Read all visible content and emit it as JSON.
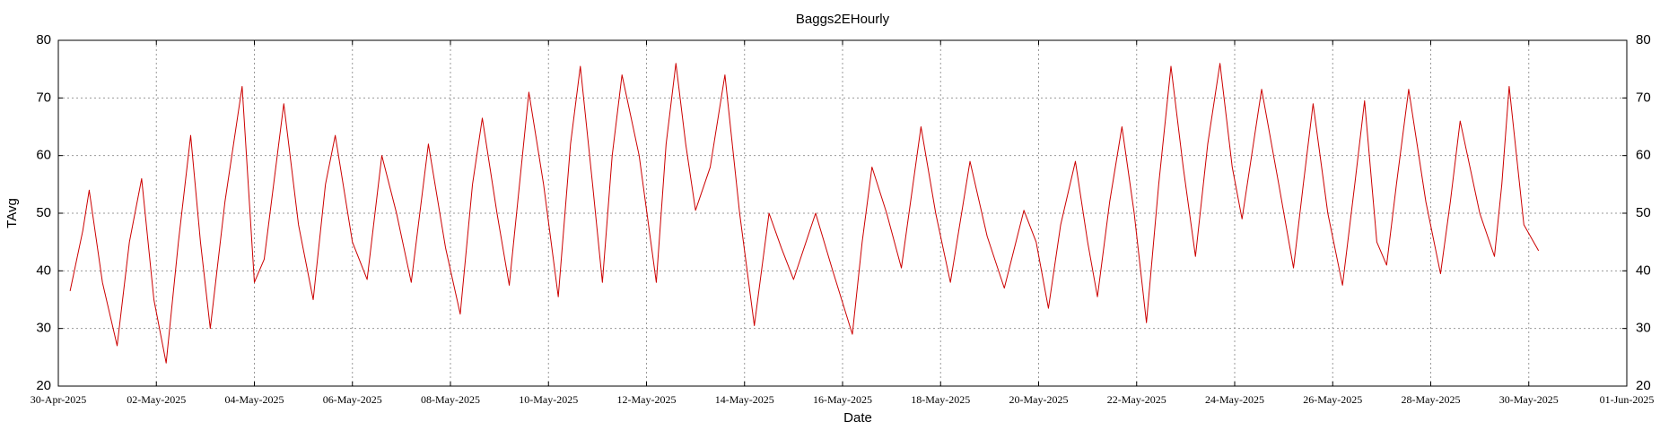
{
  "chart_data": {
    "type": "line",
    "title": "Baggs2EHourly",
    "x_label": "Date",
    "y_label": "TAvg",
    "series": [
      {
        "name": "TAvg",
        "color": "#cc0000",
        "x": [
          0.24,
          0.5,
          0.63,
          0.9,
          1.2,
          1.45,
          1.7,
          1.95,
          2.2,
          2.45,
          2.7,
          2.9,
          3.1,
          3.4,
          3.75,
          4.0,
          4.1,
          4.2,
          4.6,
          4.9,
          5.2,
          5.45,
          5.65,
          6.0,
          6.3,
          6.6,
          6.9,
          7.2,
          7.55,
          7.9,
          8.2,
          8.45,
          8.65,
          8.95,
          9.2,
          9.6,
          9.9,
          10.2,
          10.45,
          10.65,
          10.9,
          11.1,
          11.3,
          11.5,
          11.85,
          12.2,
          12.4,
          12.6,
          12.8,
          13.0,
          13.3,
          13.6,
          13.9,
          14.2,
          14.5,
          14.75,
          15.0,
          15.45,
          15.8,
          16.2,
          16.4,
          16.6,
          16.9,
          17.2,
          17.6,
          17.9,
          18.2,
          18.6,
          18.95,
          19.3,
          19.7,
          19.95,
          20.2,
          20.45,
          20.75,
          21.0,
          21.2,
          21.45,
          21.7,
          21.95,
          22.2,
          22.45,
          22.7,
          22.95,
          23.2,
          23.45,
          23.7,
          23.95,
          24.15,
          24.55,
          24.9,
          25.2,
          25.4,
          25.6,
          25.9,
          26.2,
          26.45,
          26.65,
          26.9,
          27.1,
          27.3,
          27.55,
          27.9,
          28.2,
          28.4,
          28.6,
          29.0,
          29.3,
          29.45,
          29.6,
          29.9,
          30.2
        ],
        "values": [
          36.5,
          47,
          54,
          38,
          27,
          45,
          56,
          35,
          24,
          45,
          63.5,
          45,
          30,
          52,
          72,
          38,
          40,
          42,
          69,
          48,
          35,
          55,
          63.5,
          45,
          38.5,
          60,
          50,
          38,
          62,
          44,
          32.5,
          55,
          66.5,
          50,
          37.5,
          71,
          55,
          35.5,
          62,
          75.5,
          55,
          38,
          60,
          74,
          60,
          38,
          62,
          76,
          62,
          50.5,
          58,
          74,
          50,
          30.5,
          50,
          44,
          38.5,
          50,
          40,
          29,
          45,
          58,
          50,
          40.5,
          65,
          50,
          38,
          59,
          46,
          37,
          50.5,
          45,
          33.5,
          48,
          59,
          45,
          35.5,
          52,
          65,
          50,
          31,
          55,
          75.5,
          58,
          42.5,
          62,
          76,
          58,
          49,
          71.5,
          55,
          40.5,
          55,
          69,
          50,
          37.5,
          55,
          69.5,
          45,
          41,
          55,
          71.5,
          52,
          39.5,
          52,
          66,
          50,
          42.5,
          55,
          72,
          48,
          43.5
        ]
      }
    ],
    "xlim": [
      0,
      32
    ],
    "xticks": [
      {
        "value": 0,
        "label": "30-Apr-2025"
      },
      {
        "value": 2,
        "label": "02-May-2025"
      },
      {
        "value": 4,
        "label": "04-May-2025"
      },
      {
        "value": 6,
        "label": "06-May-2025"
      },
      {
        "value": 8,
        "label": "08-May-2025"
      },
      {
        "value": 10,
        "label": "10-May-2025"
      },
      {
        "value": 12,
        "label": "12-May-2025"
      },
      {
        "value": 14,
        "label": "14-May-2025"
      },
      {
        "value": 16,
        "label": "16-May-2025"
      },
      {
        "value": 18,
        "label": "18-May-2025"
      },
      {
        "value": 20,
        "label": "20-May-2025"
      },
      {
        "value": 22,
        "label": "22-May-2025"
      },
      {
        "value": 24,
        "label": "24-May-2025"
      },
      {
        "value": 26,
        "label": "26-May-2025"
      },
      {
        "value": 28,
        "label": "28-May-2025"
      },
      {
        "value": 30,
        "label": "30-May-2025"
      },
      {
        "value": 32,
        "label": "01-Jun-2025"
      }
    ],
    "ylim": [
      20,
      80
    ],
    "yticks": [
      20,
      30,
      40,
      50,
      60,
      70,
      80
    ],
    "grid": true
  }
}
